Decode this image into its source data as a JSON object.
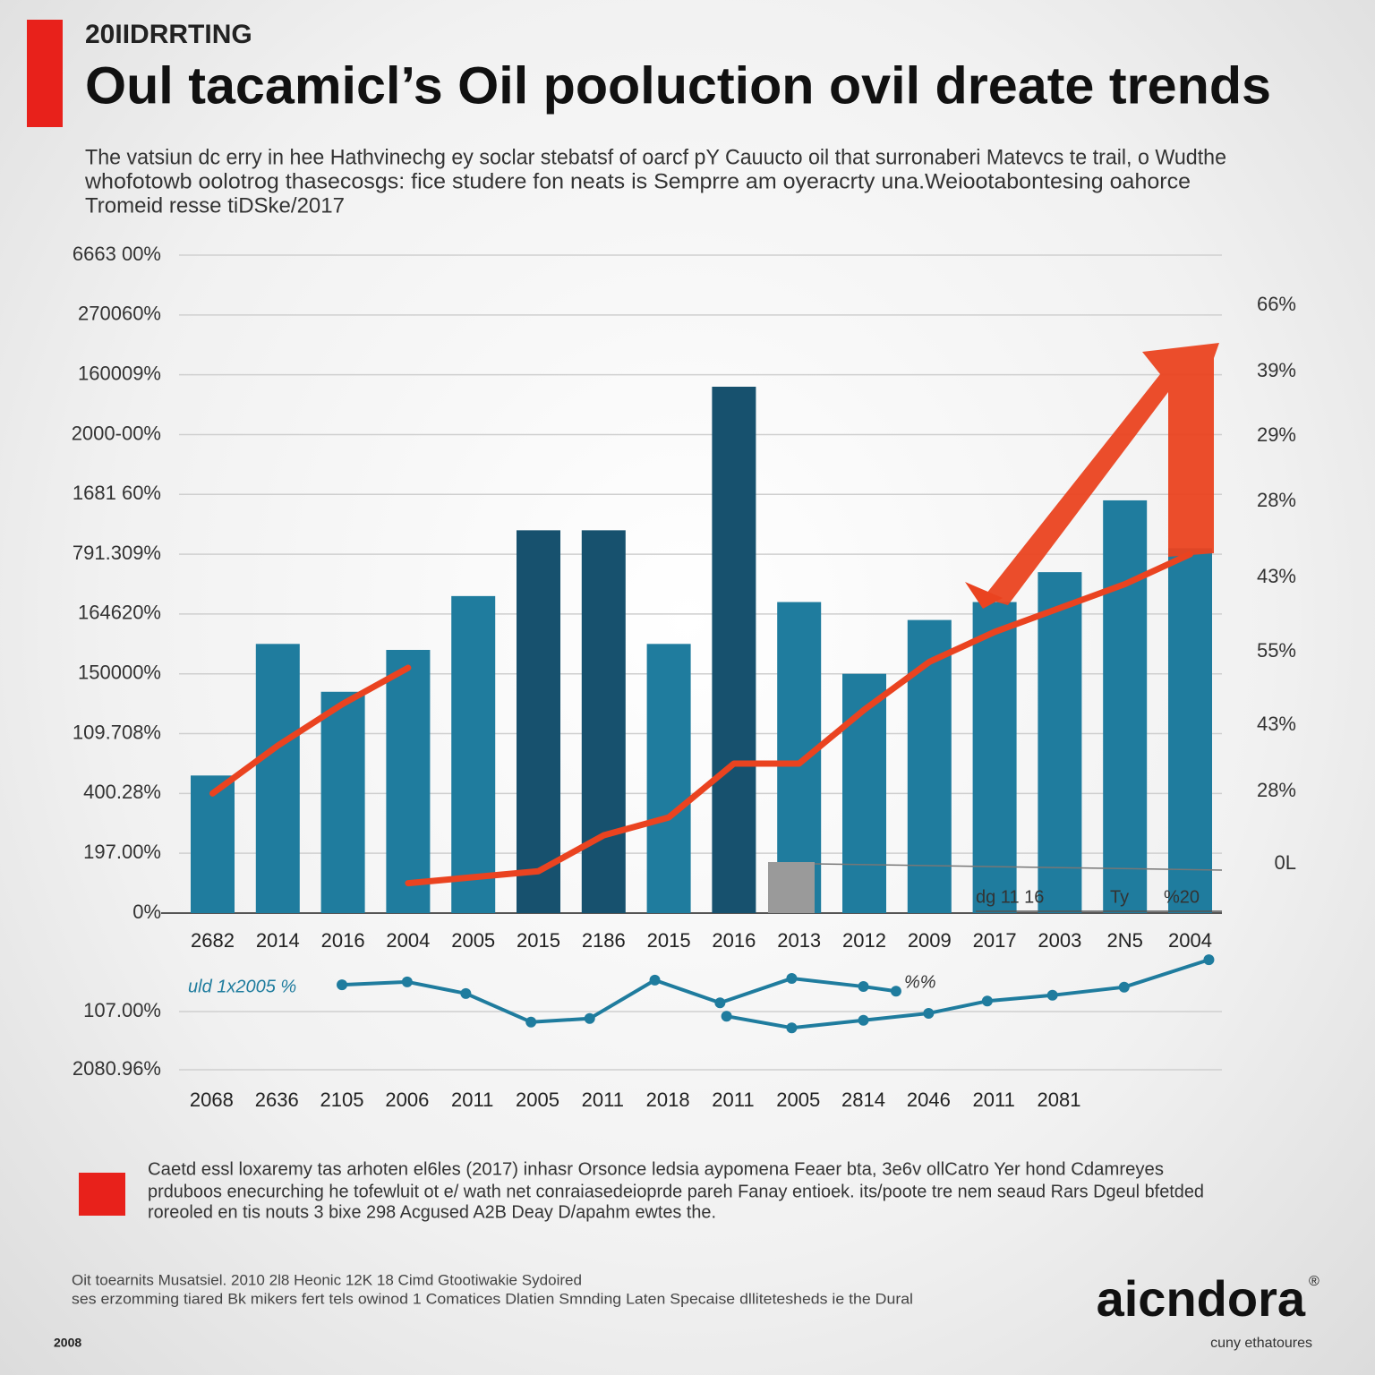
{
  "header": {
    "kicker": "20IIDRRTING",
    "title": "Oul tacamicl’s Oil  pooluction  ovil dreate trends",
    "subtitle": [
      "The vatsiun dc erry in hee Hathvinechg ey soclar stebatsf of oarcf pY Cauucto oil that surronaberi Matevcs te trail, o Wudthe",
      "whofotowb oolotrog thasecosgs: fice studere fon neats is Semprre am oyeracrty una.Weiootabontesing oahorce",
      "Tromeid resse  tiDSke/2017"
    ]
  },
  "chart_data": [
    {
      "type": "bar",
      "categories": [
        "2682",
        "2014",
        "2016",
        "2004",
        "2005",
        "2015",
        "2186",
        "2015",
        "2016",
        "2013",
        "2012",
        "2009",
        "2017",
        "2003",
        "2N5",
        "2004"
      ],
      "values": [
        2.3,
        4.5,
        3.7,
        4.4,
        5.3,
        6.4,
        6.4,
        4.5,
        8.8,
        5.2,
        4.0,
        4.9,
        5.2,
        5.7,
        6.9,
        6.1
      ],
      "colors": [
        "#1f7c9e",
        "#1f7c9e",
        "#1f7c9e",
        "#1f7c9e",
        "#1f7c9e",
        "#17516e",
        "#17516e",
        "#1f7c9e",
        "#17516e",
        "#1f7c9e",
        "#1f7c9e",
        "#1f7c9e",
        "#1f7c9e",
        "#1f7c9e",
        "#1f7c9e",
        "#1f7c9e"
      ],
      "ylim": [
        0,
        11
      ],
      "yticks": [
        {
          "value": 0,
          "label": "0%"
        },
        {
          "value": 1,
          "label": "197.00%"
        },
        {
          "value": 2,
          "label": "400.28%"
        },
        {
          "value": 3,
          "label": "109.708%"
        },
        {
          "value": 4,
          "label": "150000%"
        },
        {
          "value": 5,
          "label": "164620%"
        },
        {
          "value": 6,
          "label": "791.309%"
        },
        {
          "value": 7,
          "label": "1681 60%"
        },
        {
          "value": 8,
          "label": "2000-00%"
        },
        {
          "value": 9,
          "label": "160009%"
        },
        {
          "value": 10,
          "label": "270060%"
        },
        {
          "value": 11,
          "label": "6663 00%"
        }
      ],
      "grid": true,
      "lines": [
        {
          "color": "#ea4320",
          "values": [
            2.0,
            2.8,
            3.5,
            4.1,
            null,
            null,
            null,
            null,
            null,
            null,
            null,
            null,
            null,
            null,
            null,
            null
          ]
        },
        {
          "color": "#ea4320",
          "values": [
            null,
            null,
            null,
            0.5,
            0.6,
            0.7,
            1.3,
            1.6,
            2.5,
            2.5,
            3.4,
            4.2,
            4.7,
            5.1,
            5.5,
            6.0
          ]
        }
      ],
      "right_labels": [
        "66%",
        "39%",
        "29%",
        "28%",
        "43%",
        "55%",
        "43%",
        "28%",
        "0L"
      ],
      "annotations": [
        "dg 11  16",
        "Ty",
        "%20"
      ]
    },
    {
      "type": "line",
      "categories": [
        "2068",
        "2636",
        "2105",
        "2006",
        "2011",
        "2005",
        "2011",
        "2018",
        "2011",
        "2005",
        "2814",
        "2046",
        "2011",
        "2081"
      ],
      "xlim": [
        0,
        16
      ],
      "ylim": [
        0,
        2
      ],
      "yticks": [
        {
          "value": 0,
          "label": "2080.96%"
        },
        {
          "value": 1,
          "label": "107.00%"
        }
      ],
      "grid": true,
      "lines": [
        {
          "color": "#1f7c9e",
          "x": [
            2.5,
            3.5,
            4.4,
            5.4,
            6.3,
            7.3,
            8.3,
            9.4,
            10.5,
            11.0
          ],
          "values": [
            1.46,
            1.51,
            1.31,
            0.82,
            0.88,
            1.54,
            1.15,
            1.57,
            1.43,
            1.35
          ]
        },
        {
          "color": "#1f7c9e",
          "x": [
            8.4,
            9.4,
            10.5,
            11.5,
            12.4,
            13.4,
            14.5,
            15.8
          ],
          "values": [
            0.92,
            0.72,
            0.85,
            0.97,
            1.18,
            1.28,
            1.42,
            1.89
          ]
        }
      ],
      "annotations": [
        "uld 1x2005 %",
        "%%"
      ]
    }
  ],
  "footer": {
    "note": [
      "Caetd essl loxaremy tas arhoten el6les (2017)  inhasr Orsonce ledsia aypomena Feaer bta, 3e6v ollCatro Yer hond Cdamreyes",
      "prduboos enecurching he tofewluit ot e/ wath net conraiasedeioprde pareh Fanay entioek. its/poote tre nem seaud Rars Dgeul bfetded",
      "roreoled en tis nouts 3 bixe 298 Acgused A2B Deay D/apahm ewtes the."
    ],
    "source": [
      "Oit toearnits Musatsiel. 2010  2l8  Heonic  12K 18  Cimd Gtootiwakie Sydoired",
      "ses erzomming tiared Bk mikers fert tels owinod 1 Comatices Dlatien Smnding Laten Specaise dllitetesheds ie the Dural"
    ],
    "year": "2008",
    "brand": "aicndora",
    "brand_mark": "®",
    "tagline": "cuny ethatoures"
  }
}
